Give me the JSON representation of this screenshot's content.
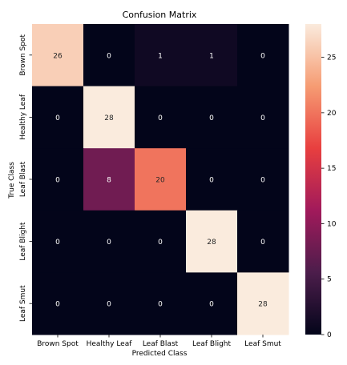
{
  "chart_data": {
    "type": "heatmap",
    "title": "Confusion Matrix",
    "xlabel": "Predicted Class",
    "ylabel": "True Class",
    "x_categories": [
      "Brown Spot",
      "Healthy Leaf",
      "Leaf Blast",
      "Leaf Blight",
      "Leaf Smut"
    ],
    "y_categories": [
      "Brown Spot",
      "Healthy Leaf",
      "Leaf Blast",
      "Leaf Blight",
      "Leaf Smut"
    ],
    "values": [
      [
        26,
        0,
        1,
        1,
        0
      ],
      [
        0,
        28,
        0,
        0,
        0
      ],
      [
        0,
        8,
        20,
        0,
        0
      ],
      [
        0,
        0,
        0,
        28,
        0
      ],
      [
        0,
        0,
        0,
        0,
        28
      ]
    ],
    "colorbar": {
      "min": 0,
      "max": 28,
      "ticks": [
        0,
        5,
        10,
        15,
        20,
        25
      ],
      "colormap": "rocket",
      "colors": [
        "#03051a",
        "#4c1d4b",
        "#a11a5b",
        "#e83f3f",
        "#f69c73",
        "#faebdd"
      ]
    }
  }
}
